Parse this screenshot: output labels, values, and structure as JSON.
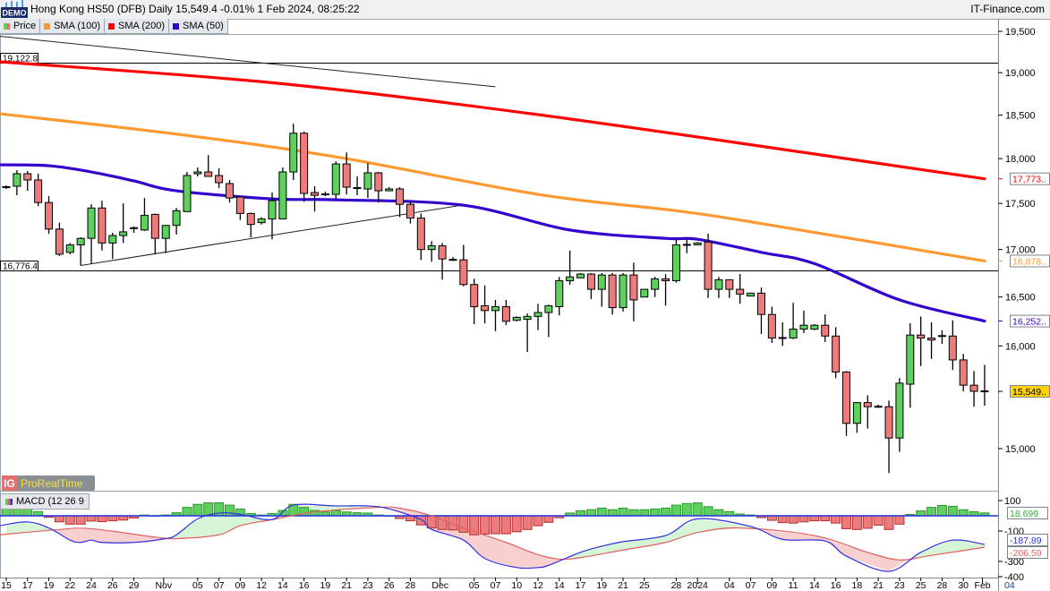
{
  "header": {
    "title": "Hong Kong HS50 (DFB) Daily 15,549.4 -0.01% 1 Feb 2024, 08:25:22",
    "brand": "IT-Finance.com",
    "demo_badge": "DEMO"
  },
  "legend": [
    {
      "label": "Price",
      "color": "#5ed05e",
      "color2": "#e87070"
    },
    {
      "label": "SMA (100)",
      "color": "#ff9a30"
    },
    {
      "label": "SMA (200)",
      "color": "#ff0000"
    },
    {
      "label": "SMA (50)",
      "color": "#3300cc"
    }
  ],
  "logo": {
    "ig": "IG",
    "text": "ProRealTime"
  },
  "chart_data": [
    {
      "type": "candlestick",
      "scale": "log",
      "ylim": [
        14700,
        19700
      ],
      "y_ticks": [
        "19,500",
        "19,000",
        "18,500",
        "18,000",
        "17,500",
        "17,000",
        "16,500",
        "16,000",
        "15,000"
      ],
      "y_tick_values": [
        19500,
        19000,
        18500,
        18000,
        17500,
        17000,
        16500,
        16000,
        15000
      ],
      "colors": {
        "up": "#5ed05e",
        "down": "#ee7b7b"
      },
      "ohlc": [
        [
          17680,
          17700,
          17660,
          17680
        ],
        [
          17690,
          17870,
          17590,
          17830
        ],
        [
          17830,
          17860,
          17640,
          17760
        ],
        [
          17760,
          17830,
          17470,
          17510
        ],
        [
          17510,
          17580,
          17170,
          17220
        ],
        [
          17220,
          17290,
          16930,
          16950
        ],
        [
          16970,
          17070,
          16950,
          17050
        ],
        [
          17050,
          17130,
          16830,
          17120
        ],
        [
          17120,
          17490,
          16850,
          17450
        ],
        [
          17450,
          17530,
          16990,
          17070
        ],
        [
          17070,
          17180,
          16900,
          17150
        ],
        [
          17150,
          17500,
          17070,
          17190
        ],
        [
          17220,
          17250,
          17180,
          17230
        ],
        [
          17210,
          17560,
          17200,
          17370
        ],
        [
          17380,
          17390,
          16950,
          17120
        ],
        [
          17120,
          17260,
          16960,
          17260
        ],
        [
          17260,
          17450,
          17160,
          17420
        ],
        [
          17410,
          17850,
          17410,
          17810
        ],
        [
          17830,
          17900,
          17800,
          17850
        ],
        [
          17850,
          18040,
          17800,
          17800
        ],
        [
          17810,
          17890,
          17670,
          17730
        ],
        [
          17720,
          17760,
          17510,
          17560
        ],
        [
          17570,
          17570,
          17320,
          17390
        ],
        [
          17390,
          17400,
          17130,
          17270
        ],
        [
          17290,
          17350,
          17270,
          17330
        ],
        [
          17330,
          17620,
          17110,
          17530
        ],
        [
          17330,
          17900,
          17330,
          17850
        ],
        [
          17850,
          18400,
          17760,
          18290
        ],
        [
          18290,
          18310,
          17520,
          17610
        ],
        [
          17620,
          17690,
          17410,
          17590
        ],
        [
          17600,
          17630,
          17580,
          17600
        ],
        [
          17600,
          17970,
          17550,
          17940
        ],
        [
          17940,
          18070,
          17600,
          17680
        ],
        [
          17670,
          17800,
          17590,
          17670
        ],
        [
          17660,
          17950,
          17560,
          17840
        ],
        [
          17840,
          17850,
          17510,
          17640
        ],
        [
          17640,
          17680,
          17640,
          17660
        ],
        [
          17660,
          17680,
          17350,
          17490
        ],
        [
          17490,
          17520,
          17280,
          17340
        ],
        [
          17340,
          17390,
          16890,
          17000
        ],
        [
          17000,
          17090,
          16870,
          17040
        ],
        [
          17040,
          17070,
          16680,
          16900
        ],
        [
          16890,
          16920,
          16880,
          16890
        ],
        [
          16890,
          17050,
          16610,
          16630
        ],
        [
          16630,
          16690,
          16220,
          16400
        ],
        [
          16410,
          16620,
          16230,
          16360
        ],
        [
          16360,
          16470,
          16150,
          16400
        ],
        [
          16400,
          16470,
          16210,
          16250
        ],
        [
          16260,
          16300,
          16250,
          16290
        ],
        [
          16270,
          16330,
          15940,
          16300
        ],
        [
          16300,
          16430,
          16160,
          16340
        ],
        [
          16340,
          16420,
          16090,
          16410
        ],
        [
          16400,
          16710,
          16310,
          16670
        ],
        [
          16670,
          16990,
          16630,
          16710
        ],
        [
          16700,
          16750,
          16700,
          16740
        ],
        [
          16740,
          16750,
          16480,
          16580
        ],
        [
          16580,
          16750,
          16400,
          16730
        ],
        [
          16730,
          16750,
          16320,
          16390
        ],
        [
          16390,
          16750,
          16350,
          16730
        ],
        [
          16730,
          16860,
          16250,
          16470
        ],
        [
          16500,
          16580,
          16500,
          16580
        ],
        [
          16580,
          16710,
          16500,
          16690
        ],
        [
          16690,
          16740,
          16410,
          16670
        ],
        [
          16670,
          17110,
          16650,
          17050
        ],
        [
          17040,
          17110,
          16960,
          17050
        ],
        [
          17050,
          17080,
          17050,
          17070
        ],
        [
          17080,
          17170,
          16490,
          16580
        ],
        [
          16580,
          16710,
          16490,
          16680
        ],
        [
          16680,
          16680,
          16490,
          16580
        ],
        [
          16580,
          16740,
          16430,
          16530
        ],
        [
          16510,
          16540,
          16510,
          16540
        ],
        [
          16540,
          16600,
          16120,
          16320
        ],
        [
          16320,
          16400,
          16030,
          16080
        ],
        [
          16080,
          16240,
          16000,
          16080
        ],
        [
          16080,
          16440,
          16070,
          16170
        ],
        [
          16170,
          16360,
          16130,
          16210
        ],
        [
          16170,
          16220,
          16160,
          16210
        ],
        [
          16210,
          16320,
          16040,
          16100
        ],
        [
          16100,
          16190,
          15680,
          15740
        ],
        [
          15740,
          15750,
          15120,
          15240
        ],
        [
          15240,
          15440,
          15150,
          15440
        ],
        [
          15440,
          15510,
          15190,
          15400
        ],
        [
          15400,
          15420,
          15390,
          15400
        ],
        [
          15400,
          15460,
          14770,
          15100
        ],
        [
          15100,
          15680,
          14970,
          15630
        ],
        [
          15620,
          16230,
          15390,
          16110
        ],
        [
          16110,
          16300,
          15800,
          16080
        ],
        [
          16080,
          16240,
          15870,
          16060
        ],
        [
          16100,
          16160,
          16020,
          16100
        ],
        [
          16100,
          16260,
          15760,
          15860
        ],
        [
          15860,
          15920,
          15550,
          15610
        ],
        [
          15610,
          15750,
          15400,
          15550
        ],
        [
          15550,
          15810,
          15410,
          15549.4
        ]
      ],
      "sma": [
        {
          "name": "SMA (200)",
          "color": "#ff0000",
          "last": "17,773..",
          "points": [
            [
              0,
              19130
            ],
            [
              25,
              18880
            ],
            [
              50,
              18505
            ],
            [
              75,
              18070
            ],
            [
              92,
              17773
            ]
          ]
        },
        {
          "name": "SMA (100)",
          "color": "#ff9a30",
          "last": "16,878..",
          "points": [
            [
              0,
              18515
            ],
            [
              16,
              18280
            ],
            [
              31,
              18020
            ],
            [
              50,
              17600
            ],
            [
              63,
              17420
            ],
            [
              71,
              17280
            ],
            [
              92,
              16878
            ]
          ]
        },
        {
          "name": "SMA (50)",
          "color": "#3300cc",
          "last": "16,252..",
          "points": [
            [
              0,
              17930
            ],
            [
              4,
              17920
            ],
            [
              8,
              17850
            ],
            [
              12,
              17750
            ],
            [
              16,
              17640
            ],
            [
              25,
              17550
            ],
            [
              31,
              17540
            ],
            [
              43,
              17480
            ],
            [
              53,
              17210
            ],
            [
              62,
              17120
            ],
            [
              65,
              17110
            ],
            [
              71,
              16970
            ],
            [
              76,
              16850
            ],
            [
              84,
              16470
            ],
            [
              92,
              16252
            ]
          ]
        }
      ],
      "last_price_label": "15,549..",
      "last_price_color": "#ffd200",
      "horizontal_lines": [
        {
          "value": 19122.8,
          "label": "19,122.8"
        },
        {
          "value": 16776.4,
          "label": "16,776.4"
        }
      ],
      "trend_lines": [
        {
          "from": [
            0,
            19440
          ],
          "to": [
            46,
            18832
          ]
        },
        {
          "from": [
            7,
            16830
          ],
          "to": [
            42.8,
            17480
          ]
        }
      ]
    },
    {
      "type": "macd",
      "label": "MACD (12 26 9",
      "y_ticks": [
        "100",
        "-100",
        "-300",
        "-400"
      ],
      "y_tick_values": [
        100,
        -100,
        -300,
        -400
      ],
      "last_labels": [
        {
          "text": "18.699",
          "value": 18.7,
          "color": "#2fb82f"
        },
        {
          "text": "-187.89",
          "value": -187.89,
          "color": "#3030dd"
        },
        {
          "text": "-206.59",
          "value": -206.59,
          "color": "#e06060"
        }
      ],
      "histogram": [
        50,
        50,
        50,
        28,
        -10,
        -40,
        -55,
        -55,
        -35,
        -38,
        -33,
        -28,
        -15,
        5,
        0,
        5,
        20,
        55,
        75,
        85,
        85,
        70,
        45,
        15,
        5,
        15,
        35,
        75,
        55,
        35,
        25,
        35,
        25,
        20,
        18,
        5,
        0,
        -18,
        -33,
        -60,
        -80,
        -90,
        -93,
        -108,
        -125,
        -120,
        -118,
        -118,
        -105,
        -90,
        -65,
        -43,
        -13,
        18,
        33,
        40,
        50,
        40,
        50,
        40,
        40,
        45,
        50,
        70,
        80,
        85,
        60,
        40,
        27,
        12,
        5,
        -12,
        -30,
        -45,
        -48,
        -40,
        -33,
        -33,
        -48,
        -85,
        -90,
        -82,
        -62,
        -90,
        -55,
        9,
        32,
        55,
        68,
        62,
        40,
        27,
        18.7
      ],
      "macd_line": [
        [
          0,
          -65
        ],
        [
          2,
          -40
        ],
        [
          4,
          -80
        ],
        [
          6,
          -160
        ],
        [
          7,
          -175
        ],
        [
          8,
          -160
        ],
        [
          9,
          -175
        ],
        [
          12,
          -175
        ],
        [
          15,
          -150
        ],
        [
          16,
          -125
        ],
        [
          18,
          -20
        ],
        [
          20,
          18
        ],
        [
          22,
          10
        ],
        [
          25,
          -25
        ],
        [
          27,
          70
        ],
        [
          31,
          65
        ],
        [
          34,
          65
        ],
        [
          36,
          45
        ],
        [
          39,
          -25
        ],
        [
          40,
          -90
        ],
        [
          43,
          -160
        ],
        [
          45,
          -280
        ],
        [
          48,
          -340
        ],
        [
          50,
          -340
        ],
        [
          51,
          -325
        ],
        [
          54,
          -240
        ],
        [
          56,
          -200
        ],
        [
          58,
          -170
        ],
        [
          62,
          -130
        ],
        [
          65,
          -20
        ],
        [
          70,
          -70
        ],
        [
          73,
          -155
        ],
        [
          77,
          -165
        ],
        [
          79,
          -265
        ],
        [
          83,
          -365
        ],
        [
          86,
          -240
        ],
        [
          89,
          -160
        ],
        [
          92,
          -187.89
        ]
      ],
      "signal_line": [
        [
          0,
          -125
        ],
        [
          5,
          -90
        ],
        [
          8,
          -85
        ],
        [
          14,
          -140
        ],
        [
          16,
          -150
        ],
        [
          20,
          -125
        ],
        [
          22,
          -65
        ],
        [
          25,
          -25
        ],
        [
          29,
          25
        ],
        [
          35,
          55
        ],
        [
          37,
          50
        ],
        [
          40,
          0
        ],
        [
          43,
          -80
        ],
        [
          47,
          -175
        ],
        [
          50,
          -255
        ],
        [
          52,
          -285
        ],
        [
          54,
          -275
        ],
        [
          58,
          -225
        ],
        [
          62,
          -175
        ],
        [
          65,
          -110
        ],
        [
          69,
          -80
        ],
        [
          76,
          -130
        ],
        [
          81,
          -240
        ],
        [
          84,
          -290
        ],
        [
          87,
          -260
        ],
        [
          92,
          -206.59
        ]
      ],
      "colors": {
        "macd": "#3030dd",
        "signal": "#e06060",
        "hist_up": "#5ed05e",
        "hist_down": "#ee7b7b"
      }
    }
  ],
  "x_axis": {
    "ticks": [
      {
        "label": "15",
        "i": 0
      },
      {
        "label": "17",
        "i": 2
      },
      {
        "label": "19",
        "i": 4
      },
      {
        "label": "22",
        "i": 6
      },
      {
        "label": "24",
        "i": 8
      },
      {
        "label": "26",
        "i": 10
      },
      {
        "label": "29",
        "i": 12
      },
      {
        "label": "Nov",
        "i": 14.8,
        "major": true
      },
      {
        "label": "05",
        "i": 18
      },
      {
        "label": "07",
        "i": 20
      },
      {
        "label": "09",
        "i": 22
      },
      {
        "label": "12",
        "i": 24
      },
      {
        "label": "14",
        "i": 26
      },
      {
        "label": "16",
        "i": 28
      },
      {
        "label": "19",
        "i": 30
      },
      {
        "label": "21",
        "i": 32
      },
      {
        "label": "23",
        "i": 34
      },
      {
        "label": "26",
        "i": 36
      },
      {
        "label": "28",
        "i": 38
      },
      {
        "label": "Dec",
        "i": 40.8,
        "major": true
      },
      {
        "label": "05",
        "i": 44
      },
      {
        "label": "07",
        "i": 46
      },
      {
        "label": "10",
        "i": 48
      },
      {
        "label": "12",
        "i": 50
      },
      {
        "label": "14",
        "i": 52
      },
      {
        "label": "17",
        "i": 54
      },
      {
        "label": "19",
        "i": 56
      },
      {
        "label": "21",
        "i": 58
      },
      {
        "label": "25",
        "i": 60
      },
      {
        "label": "28",
        "i": 63
      },
      {
        "label": "2024",
        "i": 65,
        "major": true
      },
      {
        "label": "04",
        "i": 68
      },
      {
        "label": "07",
        "i": 70
      },
      {
        "label": "09",
        "i": 72
      },
      {
        "label": "11",
        "i": 74
      },
      {
        "label": "14",
        "i": 76
      },
      {
        "label": "16",
        "i": 78
      },
      {
        "label": "18",
        "i": 80
      },
      {
        "label": "21",
        "i": 82
      },
      {
        "label": "23",
        "i": 84
      },
      {
        "label": "25",
        "i": 86
      },
      {
        "label": "28",
        "i": 88
      },
      {
        "label": "30",
        "i": 90
      },
      {
        "label": "Feb",
        "i": 91.8,
        "major": true
      },
      {
        "label": "04",
        "i": 94
      }
    ]
  }
}
